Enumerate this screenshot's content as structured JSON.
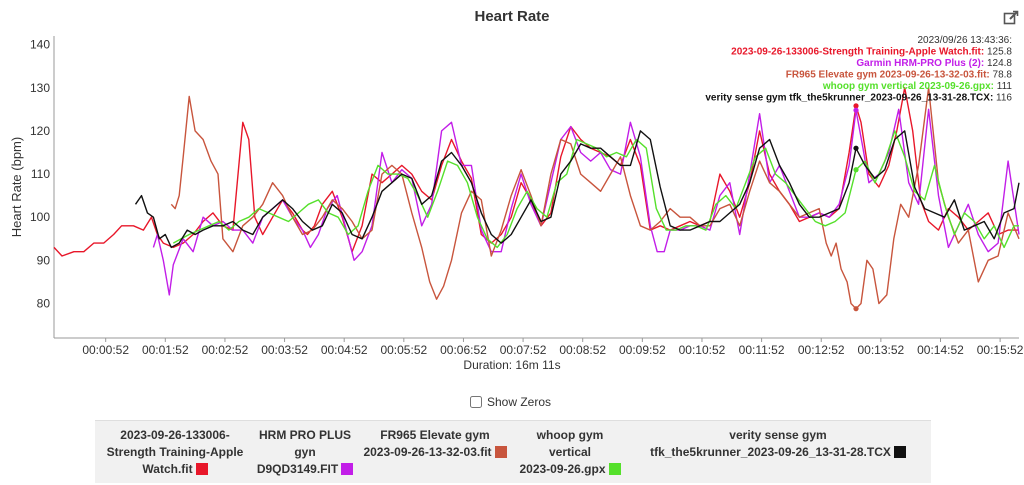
{
  "header": {
    "title": "Heart Rate",
    "export_icon": "pencil-export-icon"
  },
  "controls": {
    "show_zeros_label": "Show Zeros",
    "show_zeros_checked": false
  },
  "duration_label": "Duration: 16m 11s",
  "tooltip": {
    "time": "2023/09/26 13:43:36:",
    "rows": [
      {
        "label": "2023-09-26-133006-Strength Training-Apple Watch.fit:",
        "value": "125.8",
        "color": "#e8172a"
      },
      {
        "label": "Garmin HRM-PRO Plus (2):",
        "value": "124.8",
        "color": "#c21ee8"
      },
      {
        "label": "FR965 Elevate gym 2023-09-26-13-32-03.fit:",
        "value": "78.8",
        "color": "#c8553d"
      },
      {
        "label": "whoop gym vertical 2023-09-26.gpx:",
        "value": "111",
        "color": "#55e02b"
      },
      {
        "label": "verity sense gym tfk_the5krunner_2023-09-26_13-31-28.TCX:",
        "value": "116",
        "color": "#111111"
      }
    ]
  },
  "legend": [
    {
      "lines": [
        "2023-09-26-133006-",
        "Strength Training-Apple",
        "Watch.fit"
      ],
      "color": "#e8172a"
    },
    {
      "lines": [
        "HRM PRO PLUS",
        "gyn",
        "D9QD3149.FIT"
      ],
      "color": "#c21ee8"
    },
    {
      "lines": [
        "FR965 Elevate gym",
        "2023-09-26-13-32-03.fit"
      ],
      "color": "#c8553d"
    },
    {
      "lines": [
        "whoop gym",
        "vertical",
        "2023-09-26.gpx"
      ],
      "color": "#55e02b"
    },
    {
      "lines": [
        "verity sense gym",
        "tfk_the5krunner_2023-09-26_13-31-28.TCX"
      ],
      "color": "#111111"
    }
  ],
  "chart_data": {
    "type": "line",
    "title": "Heart Rate",
    "ylabel": "Heart Rate (bpm)",
    "xlabel": "Duration: 16m 11s",
    "ylim": [
      72,
      142
    ],
    "xlim_seconds": [
      0,
      971
    ],
    "y_ticks": [
      80,
      90,
      100,
      110,
      120,
      130,
      140
    ],
    "x_ticks": [
      "00:00:52",
      "00:01:52",
      "00:02:52",
      "00:03:52",
      "00:04:52",
      "00:05:52",
      "00:06:52",
      "00:07:52",
      "00:08:52",
      "00:09:52",
      "00:10:52",
      "00:11:52",
      "00:12:52",
      "00:13:52",
      "00:14:52",
      "00:15:52"
    ],
    "x_tick_seconds": [
      52,
      112,
      172,
      232,
      292,
      352,
      412,
      472,
      532,
      592,
      652,
      712,
      772,
      832,
      892,
      952
    ],
    "grid": false,
    "legend_position": "bottom",
    "cursor_seconds": 807,
    "series": [
      {
        "name": "2023-09-26-133006-Strength Training-Apple Watch.fit",
        "color": "#e8172a",
        "x": [
          0,
          8,
          20,
          30,
          40,
          50,
          60,
          68,
          80,
          90,
          98,
          104,
          110,
          120,
          130,
          140,
          150,
          160,
          170,
          180,
          190,
          196,
          202,
          210,
          220,
          230,
          240,
          250,
          255,
          262,
          270,
          280,
          290,
          300,
          310,
          320,
          330,
          340,
          350,
          360,
          370,
          380,
          390,
          400,
          410,
          420,
          430,
          440,
          450,
          460,
          470,
          480,
          490,
          500,
          510,
          520,
          530,
          540,
          550,
          560,
          570,
          580,
          590,
          600,
          610,
          620,
          630,
          640,
          650,
          660,
          670,
          680,
          690,
          700,
          710,
          720,
          730,
          740,
          750,
          760,
          770,
          780,
          790,
          800,
          807,
          812,
          820,
          830,
          840,
          848,
          856,
          864,
          872,
          880,
          890,
          900,
          910,
          920,
          930,
          940,
          950,
          960,
          971
        ],
        "y": [
          93,
          91,
          92,
          92,
          94,
          94,
          96,
          98,
          98,
          97,
          100,
          96,
          94,
          93,
          94,
          96,
          99,
          101,
          98,
          97,
          122,
          118,
          100,
          96,
          100,
          104,
          101,
          97,
          96,
          98,
          103,
          106,
          100,
          92,
          98,
          110,
          108,
          110,
          112,
          110,
          106,
          104,
          112,
          118,
          113,
          109,
          96,
          94,
          96,
          100,
          108,
          104,
          98,
          101,
          114,
          121,
          118,
          116,
          115,
          114,
          112,
          118,
          112,
          97,
          98,
          97,
          98,
          99,
          98,
          99,
          110,
          106,
          100,
          108,
          120,
          110,
          106,
          103,
          99,
          100,
          101,
          100,
          102,
          115,
          125.8,
          122,
          110,
          107,
          112,
          120,
          130,
          120,
          104,
          99,
          97,
          102,
          100,
          97,
          99,
          101,
          96,
          97,
          97
        ]
      },
      {
        "name": "HRM PRO PLUS gyn D9QD3149.FIT",
        "color": "#c21ee8",
        "x": [
          100,
          104,
          110,
          116,
          120,
          130,
          140,
          150,
          160,
          170,
          180,
          190,
          200,
          210,
          220,
          230,
          240,
          250,
          258,
          266,
          275,
          285,
          293,
          302,
          310,
          320,
          330,
          340,
          350,
          360,
          370,
          380,
          390,
          400,
          410,
          420,
          430,
          440,
          450,
          460,
          470,
          480,
          490,
          500,
          510,
          520,
          530,
          540,
          550,
          560,
          570,
          580,
          590,
          600,
          607,
          614,
          620,
          630,
          640,
          650,
          660,
          670,
          680,
          690,
          700,
          710,
          720,
          730,
          740,
          750,
          760,
          770,
          780,
          790,
          800,
          807,
          814,
          820,
          830,
          840,
          850,
          860,
          870,
          880,
          890,
          900,
          910,
          920,
          930,
          940,
          950,
          960,
          971
        ],
        "y": [
          93,
          96,
          90,
          82,
          89,
          95,
          92,
          100,
          98,
          99,
          97,
          97,
          94,
          100,
          102,
          104,
          100,
          97,
          93,
          96,
          102,
          105,
          98,
          90,
          92,
          98,
          115,
          108,
          111,
          109,
          98,
          103,
          120,
          122,
          112,
          112,
          97,
          92,
          92,
          102,
          110,
          103,
          98,
          108,
          118,
          121,
          115,
          113,
          115,
          111,
          110,
          122,
          114,
          98,
          92,
          92,
          97,
          97,
          98,
          98,
          97,
          105,
          108,
          96,
          110,
          124,
          108,
          112,
          106,
          100,
          100,
          101,
          100,
          103,
          112,
          124.8,
          116,
          108,
          110,
          115,
          125,
          108,
          103,
          125,
          105,
          93,
          98,
          103,
          96,
          92,
          94,
          113,
          96
        ]
      },
      {
        "name": "FR965 Elevate gym 2023-09-26-13-32-03.fit",
        "color": "#c8553d",
        "x": [
          118,
          122,
          126,
          130,
          136,
          142,
          150,
          158,
          165,
          170,
          180,
          190,
          200,
          210,
          220,
          230,
          240,
          250,
          260,
          270,
          280,
          290,
          300,
          310,
          320,
          330,
          340,
          350,
          360,
          370,
          378,
          385,
          392,
          400,
          410,
          420,
          430,
          440,
          450,
          460,
          470,
          480,
          490,
          500,
          510,
          520,
          530,
          540,
          550,
          560,
          570,
          580,
          590,
          600,
          610,
          620,
          630,
          640,
          650,
          660,
          670,
          680,
          690,
          700,
          710,
          720,
          730,
          740,
          750,
          760,
          770,
          777,
          782,
          787,
          792,
          798,
          802,
          807,
          812,
          818,
          824,
          830,
          838,
          845,
          852,
          860,
          870,
          880,
          890,
          900,
          910,
          920,
          930,
          940,
          950,
          960,
          971
        ],
        "y": [
          103,
          102,
          105,
          114,
          128,
          120,
          118,
          113,
          110,
          95,
          92,
          98,
          100,
          103,
          108,
          105,
          100,
          96,
          97,
          100,
          104,
          102,
          99,
          95,
          97,
          110,
          112,
          110,
          101,
          93,
          85,
          81,
          84,
          90,
          101,
          106,
          104,
          91,
          97,
          105,
          111,
          105,
          98,
          110,
          118,
          117,
          110,
          108,
          106,
          110,
          114,
          105,
          98,
          97,
          99,
          102,
          100,
          100,
          98,
          98,
          102,
          103,
          98,
          106,
          113,
          108,
          106,
          103,
          100,
          101,
          102,
          94,
          91,
          94,
          88,
          85,
          80,
          78.8,
          80,
          90,
          88,
          80,
          82,
          95,
          103,
          100,
          112,
          130,
          108,
          100,
          94,
          97,
          85,
          90,
          91,
          101,
          95
        ]
      },
      {
        "name": "whoop gym vertical 2023-09-26.gpx",
        "color": "#55e02b",
        "x": [
          120,
          128,
          136,
          146,
          156,
          166,
          176,
          186,
          196,
          206,
          216,
          226,
          236,
          246,
          256,
          266,
          276,
          286,
          296,
          306,
          316,
          326,
          336,
          346,
          356,
          366,
          376,
          386,
          396,
          406,
          416,
          426,
          436,
          446,
          456,
          466,
          476,
          486,
          496,
          506,
          516,
          526,
          536,
          546,
          556,
          566,
          576,
          586,
          596,
          606,
          616,
          626,
          636,
          646,
          656,
          666,
          676,
          686,
          696,
          706,
          716,
          726,
          736,
          746,
          756,
          766,
          776,
          786,
          796,
          807,
          816,
          826,
          836,
          846,
          856,
          866,
          876,
          886,
          896,
          906,
          916,
          926,
          936,
          946,
          956,
          966,
          971
        ],
        "y": [
          94,
          95,
          96,
          97,
          98,
          99,
          97,
          99,
          100,
          102,
          101,
          100,
          99,
          101,
          103,
          104,
          101,
          100,
          96,
          98,
          106,
          112,
          110,
          110,
          109,
          105,
          100,
          106,
          113,
          112,
          108,
          100,
          95,
          93,
          96,
          102,
          106,
          102,
          100,
          108,
          110,
          118,
          117,
          116,
          114,
          115,
          114,
          118,
          116,
          102,
          97,
          97,
          98,
          98,
          97,
          103,
          105,
          102,
          108,
          114,
          116,
          110,
          108,
          105,
          102,
          99,
          98,
          99,
          101,
          111,
          113,
          108,
          113,
          120,
          114,
          106,
          104,
          112,
          103,
          96,
          101,
          99,
          95,
          98,
          93,
          98,
          98
        ]
      },
      {
        "name": "verity sense gym tfk_the5krunner_2023-09-26_13-31-28.TCX",
        "color": "#111111",
        "x": [
          82,
          88,
          94,
          100,
          106,
          112,
          118,
          126,
          134,
          142,
          150,
          160,
          170,
          180,
          190,
          200,
          210,
          220,
          230,
          240,
          250,
          260,
          270,
          280,
          290,
          300,
          310,
          320,
          330,
          340,
          350,
          360,
          370,
          380,
          390,
          400,
          410,
          420,
          430,
          440,
          450,
          460,
          470,
          480,
          490,
          500,
          510,
          520,
          530,
          540,
          550,
          560,
          570,
          580,
          590,
          600,
          610,
          620,
          630,
          640,
          650,
          660,
          670,
          680,
          690,
          700,
          710,
          720,
          730,
          740,
          750,
          760,
          770,
          780,
          790,
          800,
          807,
          816,
          826,
          836,
          846,
          856,
          866,
          876,
          886,
          896,
          906,
          916,
          926,
          936,
          946,
          956,
          966,
          971
        ],
        "y": [
          103,
          105,
          101,
          100,
          95,
          96,
          93,
          94,
          97,
          96,
          97,
          98,
          98,
          99,
          97,
          96,
          100,
          102,
          104,
          102,
          99,
          97,
          98,
          103,
          101,
          96,
          95,
          100,
          106,
          108,
          110,
          109,
          103,
          105,
          113,
          115,
          112,
          108,
          101,
          96,
          94,
          96,
          100,
          104,
          99,
          100,
          110,
          113,
          117,
          116,
          116,
          114,
          112,
          112,
          120,
          118,
          107,
          98,
          97,
          97,
          98,
          99,
          99,
          101,
          103,
          108,
          116,
          118,
          112,
          108,
          103,
          100,
          100,
          101,
          102,
          108,
          116,
          112,
          109,
          111,
          118,
          120,
          107,
          102,
          101,
          100,
          104,
          97,
          98,
          99,
          95,
          101,
          102,
          108
        ]
      }
    ]
  }
}
